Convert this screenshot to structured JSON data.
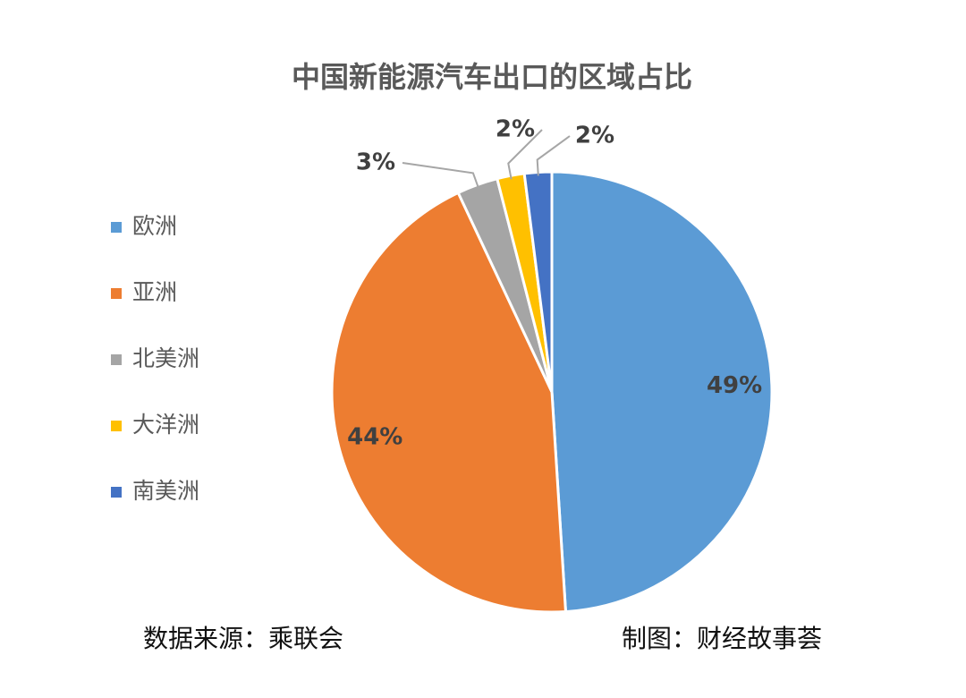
{
  "chart_data": {
    "type": "pie",
    "title": "中国新能源汽车出口的区域占比",
    "categories": [
      "欧洲",
      "亚洲",
      "北美洲",
      "大洋洲",
      "南美洲"
    ],
    "values": [
      49,
      44,
      3,
      2,
      2
    ],
    "value_labels": [
      "49%",
      "44%",
      "3%",
      "2%",
      "2%"
    ],
    "colors": [
      "#5b9bd5",
      "#ed7d31",
      "#a5a5a5",
      "#ffc000",
      "#4472c4"
    ],
    "legend": "left",
    "source": "数据来源：乘联会",
    "credit": "制图：财经故事荟"
  }
}
